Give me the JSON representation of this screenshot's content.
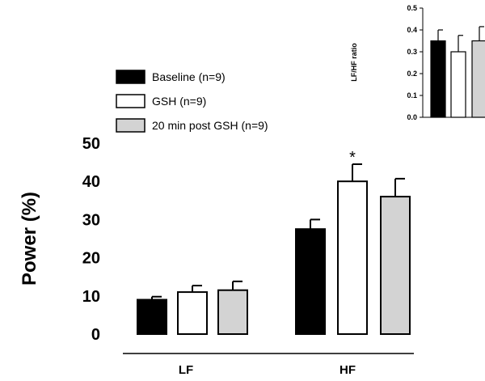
{
  "chart_data": [
    {
      "type": "bar",
      "title": "",
      "xlabel": "",
      "ylabel": "Power (%)",
      "ylim": [
        0,
        50
      ],
      "yticks": [
        "0",
        "10",
        "20",
        "30",
        "40",
        "50"
      ],
      "categories": [
        "LF",
        "HF"
      ],
      "series": [
        {
          "name": "Baseline (n=9)",
          "values": [
            9,
            27.5
          ],
          "errors": [
            0.8,
            2.5
          ],
          "color": "#000000"
        },
        {
          "name": "GSH (n=9)",
          "values": [
            11,
            40
          ],
          "errors": [
            1.7,
            4.5
          ],
          "color": "#ffffff"
        },
        {
          "name": "20 min post GSH (n=9)",
          "values": [
            11.5,
            36
          ],
          "errors": [
            2.3,
            4.7
          ],
          "color": "#d3d3d3"
        }
      ],
      "annotations": [
        {
          "text": "*",
          "category": "HF",
          "series": "GSH (n=9)"
        }
      ],
      "legend": "top-left",
      "grid": false
    },
    {
      "type": "bar",
      "title": "",
      "ylabel": "LF/HF ratio",
      "ylim": [
        0,
        0.5
      ],
      "yticks": [
        "0.0",
        "0.1",
        "0.2",
        "0.3",
        "0.4",
        "0.5"
      ],
      "series": [
        {
          "name": "Baseline (n=9)",
          "values": [
            0.35
          ],
          "errors": [
            0.05
          ],
          "color": "#000000"
        },
        {
          "name": "GSH (n=9)",
          "values": [
            0.3
          ],
          "errors": [
            0.075
          ],
          "color": "#ffffff"
        },
        {
          "name": "20 min post GSH (n=9)",
          "values": [
            0.35
          ],
          "errors": [
            0.065
          ],
          "color": "#d3d3d3"
        }
      ],
      "legend": "none",
      "grid": false
    }
  ]
}
